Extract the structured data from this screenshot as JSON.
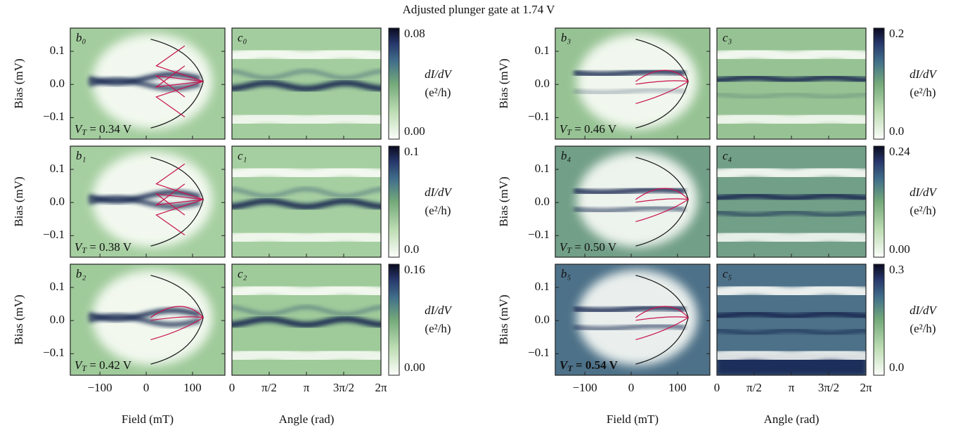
{
  "title": "Adjusted plunger gate at 1.74 V",
  "field_axis": {
    "label": "Field (mT)",
    "xlim": [
      -164,
      170
    ],
    "xticks": [
      {
        "value": -100,
        "label": "−100"
      },
      0,
      100
    ]
  },
  "bias_axis": {
    "label": "Bias (mV)",
    "ylim": [
      -0.165,
      0.17
    ],
    "yticks": [
      0.1,
      {
        "value": 0,
        "label": "0.0"
      },
      {
        "value": -0.1,
        "label": "−0.1"
      }
    ]
  },
  "angle_axis": {
    "label": "Angle (rad)",
    "xlim": [
      0,
      6.2832
    ],
    "xticks": [
      0,
      {
        "value": 1.5708,
        "label": "π/2"
      },
      {
        "value": 3.1416,
        "label": "π"
      },
      {
        "value": 4.7124,
        "label": "3π/2"
      },
      {
        "value": 6.2832,
        "label": "2π"
      }
    ]
  },
  "colorbar_label": {
    "top": "dI/dV",
    "bottom": "(e²/h)"
  },
  "chart_data": [
    {
      "type": "heatmap",
      "field_panel": "b₀",
      "angle_panel": "c₀",
      "annotation": {
        "var": "V",
        "sub": "T",
        "text": " = 0.34 V"
      },
      "background": "#a3cd9e",
      "clim": [
        0,
        0.085
      ],
      "cticks": [
        0.08,
        {
          "value": 0,
          "label": "0.00"
        }
      ]
    },
    {
      "type": "heatmap",
      "field_panel": "b₁",
      "angle_panel": "c₁",
      "annotation": {
        "var": "V",
        "sub": "T",
        "text": " = 0.38 V"
      },
      "background": "#a6cfa1",
      "clim": [
        0,
        0.106
      ],
      "cticks": [
        0.1,
        {
          "value": 0,
          "label": "0.0"
        }
      ]
    },
    {
      "type": "heatmap",
      "field_panel": "b₂",
      "angle_panel": "c₂",
      "annotation": {
        "var": "V",
        "sub": "T",
        "text": " = 0.42 V"
      },
      "background": "#9fca9a",
      "clim": [
        0,
        0.17
      ],
      "cticks": [
        0.16,
        {
          "value": 0,
          "label": "0.00"
        }
      ]
    },
    {
      "type": "heatmap",
      "field_panel": "b₃",
      "angle_panel": "c₃",
      "annotation": {
        "var": "V",
        "sub": "T",
        "text": " = 0.46 V"
      },
      "background": "#97c394",
      "clim": [
        0,
        0.212
      ],
      "cticks": [
        0.2,
        {
          "value": 0,
          "label": "0.0"
        }
      ]
    },
    {
      "type": "heatmap",
      "field_panel": "b₄",
      "angle_panel": "c₄",
      "annotation": {
        "var": "V",
        "sub": "T",
        "text": " = 0.50 V"
      },
      "background": "#729f88",
      "clim": [
        0,
        0.255
      ],
      "cticks": [
        0.24,
        {
          "value": 0,
          "label": "0.00"
        }
      ]
    },
    {
      "type": "heatmap",
      "field_panel": "b₅",
      "angle_panel": "c₅",
      "annotation": {
        "var": "V",
        "sub": "T",
        "text": " = 0.54 V"
      },
      "background": "#4d7188",
      "clim": [
        0,
        0.318
      ],
      "cticks": [
        0.3,
        {
          "value": 0,
          "label": "0.0"
        }
      ]
    }
  ]
}
